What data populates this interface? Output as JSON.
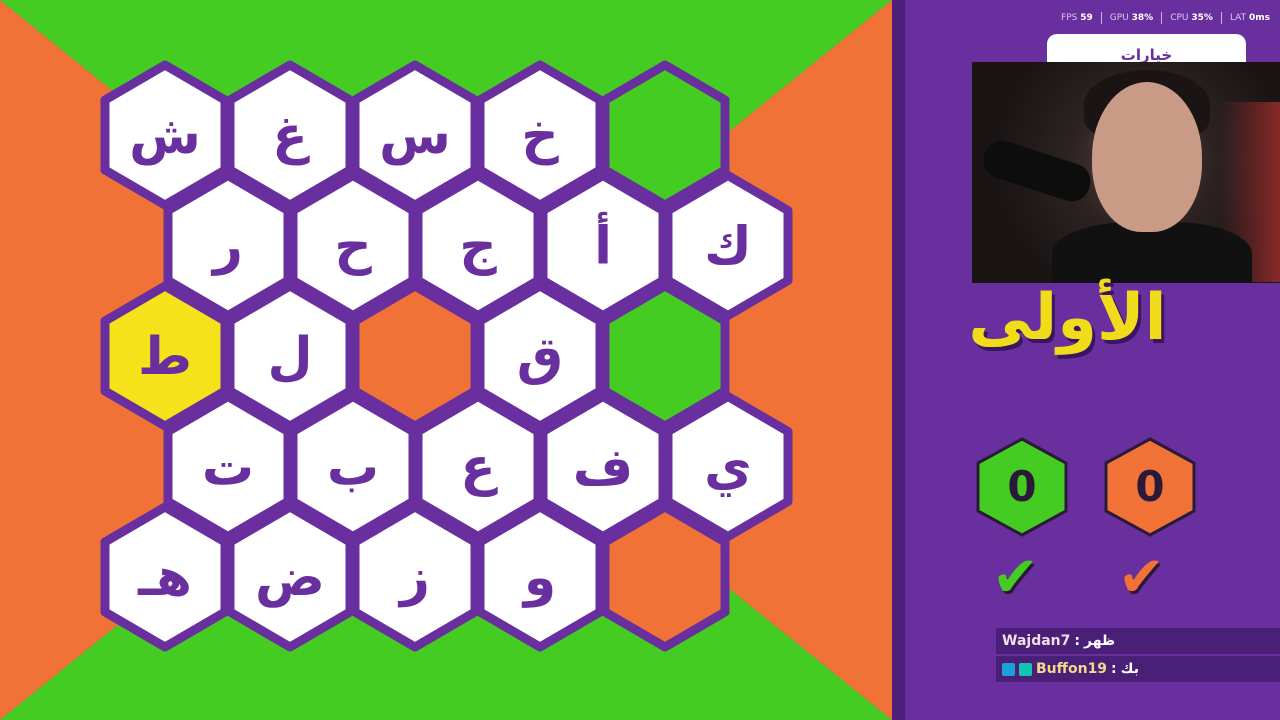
{
  "stats": {
    "fps_label": "FPS",
    "fps": "59",
    "gpu_label": "GPU",
    "gpu": "38%",
    "cpu_label": "CPU",
    "cpu": "35%",
    "lat_label": "LAT",
    "lat": "0ms"
  },
  "options_label": "خيارات",
  "logo_text": "الأولى",
  "colors": {
    "green": "#44cc22",
    "orange": "#f07236",
    "yellow": "#f5e21a",
    "purple": "#6a2f9e",
    "white": "#ffffff"
  },
  "board": {
    "rows": [
      [
        {
          "letter": "ش",
          "state": "white"
        },
        {
          "letter": "غ",
          "state": "white"
        },
        {
          "letter": "س",
          "state": "white"
        },
        {
          "letter": "خ",
          "state": "white"
        },
        {
          "letter": "",
          "state": "green"
        }
      ],
      [
        {
          "letter": "ر",
          "state": "white"
        },
        {
          "letter": "ح",
          "state": "white"
        },
        {
          "letter": "ج",
          "state": "white"
        },
        {
          "letter": "أ",
          "state": "white"
        },
        {
          "letter": "ك",
          "state": "white"
        }
      ],
      [
        {
          "letter": "ط",
          "state": "yellow"
        },
        {
          "letter": "ل",
          "state": "white"
        },
        {
          "letter": "",
          "state": "orange"
        },
        {
          "letter": "ق",
          "state": "white"
        },
        {
          "letter": "",
          "state": "green"
        }
      ],
      [
        {
          "letter": "ت",
          "state": "white"
        },
        {
          "letter": "ب",
          "state": "white"
        },
        {
          "letter": "ع",
          "state": "white"
        },
        {
          "letter": "ف",
          "state": "white"
        },
        {
          "letter": "ي",
          "state": "white"
        }
      ],
      [
        {
          "letter": "هـ",
          "state": "white"
        },
        {
          "letter": "ض",
          "state": "white"
        },
        {
          "letter": "ز",
          "state": "white"
        },
        {
          "letter": "و",
          "state": "white"
        },
        {
          "letter": "",
          "state": "orange"
        }
      ]
    ]
  },
  "scores": {
    "green": "0",
    "orange": "0"
  },
  "check_icon": "✔",
  "chat": [
    {
      "user": "Wajdan7",
      "text": "ظهر"
    },
    {
      "user": "Buffon19",
      "text": "بك"
    }
  ]
}
